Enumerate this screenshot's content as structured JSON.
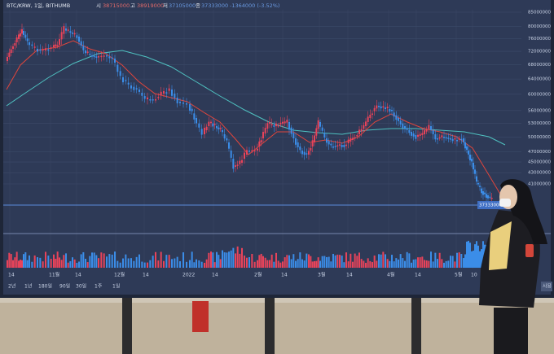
{
  "screen": {
    "header": {
      "symbol": "BTC/KRW, 1일, BITHUMB",
      "open_label": "시",
      "open": "38715000",
      "high_label": "고",
      "high": "38919000",
      "low_label": "저",
      "low": "37105000",
      "close_label": "종",
      "close": "37333000",
      "change": "-1364000 (-3.52%)"
    },
    "price_axis": [
      85000000,
      80000000,
      76000000,
      72000000,
      68000000,
      64000000,
      60000000,
      56000000,
      53000000,
      50000000,
      47000000,
      45000000,
      43000000,
      41000000
    ],
    "current_price": "37333000",
    "date_labels": [
      "14",
      "11월",
      "14",
      "12월",
      "14",
      "2022",
      "14",
      "2월",
      "14",
      "3월",
      "14",
      "4월",
      "14",
      "5월",
      "10"
    ],
    "range_buttons": [
      "2년",
      "1년",
      "180일",
      "90일",
      "30일",
      "1주",
      "1일"
    ],
    "corner_button": "사용"
  }
}
